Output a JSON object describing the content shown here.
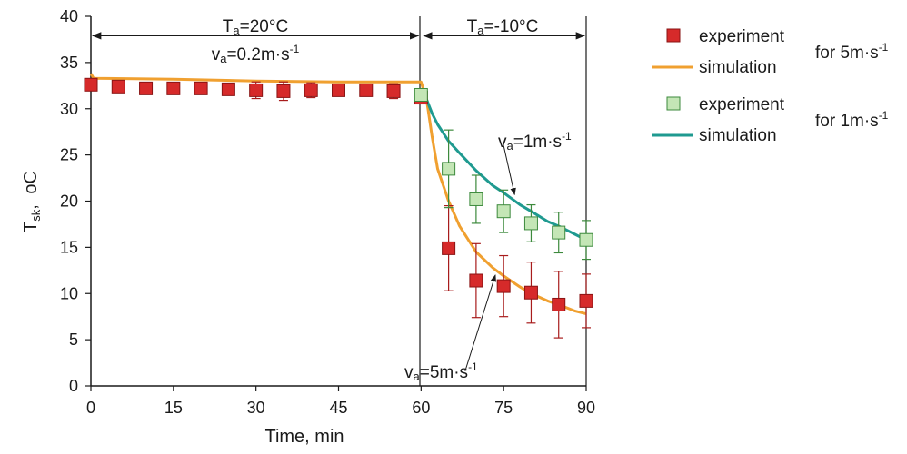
{
  "chart_data": {
    "type": "line",
    "xlabel": "Time, min",
    "ylabel_main": "T",
    "ylabel_sub": "sk",
    "ylabel_unit": "oC",
    "xlim": [
      0,
      90
    ],
    "ylim": [
      0,
      40
    ],
    "xticks": [
      "0",
      "15",
      "30",
      "45",
      "60",
      "75",
      "90"
    ],
    "yticks": [
      "0",
      "5",
      "10",
      "15",
      "20",
      "25",
      "30",
      "35",
      "40"
    ],
    "grid": false,
    "legend_position": "right",
    "series": [
      {
        "name": "experiment",
        "group": "for 5m·s-1",
        "kind": "scatter",
        "color": "#d62a2a",
        "points": [
          {
            "x": 0,
            "y": 32.6,
            "err": 0.5
          },
          {
            "x": 5,
            "y": 32.4,
            "err": 0.6
          },
          {
            "x": 10,
            "y": 32.2,
            "err": 0.6
          },
          {
            "x": 15,
            "y": 32.2,
            "err": 0.6
          },
          {
            "x": 20,
            "y": 32.2,
            "err": 0.6
          },
          {
            "x": 25,
            "y": 32.1,
            "err": 0.6
          },
          {
            "x": 30,
            "y": 32.0,
            "err": 0.9
          },
          {
            "x": 35,
            "y": 31.9,
            "err": 1.0
          },
          {
            "x": 40,
            "y": 32.0,
            "err": 0.8
          },
          {
            "x": 45,
            "y": 32.0,
            "err": 0.3
          },
          {
            "x": 50,
            "y": 32.0,
            "err": 0.3
          },
          {
            "x": 55,
            "y": 31.9,
            "err": 0.8
          },
          {
            "x": 60,
            "y": 31.2,
            "err": 0.4
          },
          {
            "x": 65,
            "y": 14.9,
            "err": 4.6
          },
          {
            "x": 70,
            "y": 11.4,
            "err": 4.0
          },
          {
            "x": 75,
            "y": 10.8,
            "err": 3.3
          },
          {
            "x": 80,
            "y": 10.1,
            "err": 3.3
          },
          {
            "x": 85,
            "y": 8.8,
            "err": 3.6
          },
          {
            "x": 90,
            "y": 9.2,
            "err": 2.9
          }
        ]
      },
      {
        "name": "simulation",
        "group": "for 5m·s-1",
        "kind": "line",
        "color": "#f0a030",
        "points": [
          {
            "x": 0,
            "y": 33.8
          },
          {
            "x": 0.5,
            "y": 33.3
          },
          {
            "x": 15,
            "y": 33.2
          },
          {
            "x": 30,
            "y": 33.0
          },
          {
            "x": 45,
            "y": 32.9
          },
          {
            "x": 60,
            "y": 32.9
          },
          {
            "x": 61,
            "y": 31.0
          },
          {
            "x": 62,
            "y": 27.0
          },
          {
            "x": 63,
            "y": 23.5
          },
          {
            "x": 65,
            "y": 20.0
          },
          {
            "x": 67,
            "y": 17.3
          },
          {
            "x": 70,
            "y": 14.5
          },
          {
            "x": 73,
            "y": 12.8
          },
          {
            "x": 75,
            "y": 11.9
          },
          {
            "x": 78,
            "y": 10.7
          },
          {
            "x": 80,
            "y": 10.0
          },
          {
            "x": 83,
            "y": 9.2
          },
          {
            "x": 85,
            "y": 8.8
          },
          {
            "x": 88,
            "y": 8.1
          },
          {
            "x": 90,
            "y": 7.8
          }
        ]
      },
      {
        "name": "experiment",
        "group": "for 1m·s-1",
        "kind": "scatter",
        "color": "#c4e6b6",
        "points": [
          {
            "x": 60,
            "y": 31.5,
            "err": 0.5
          },
          {
            "x": 65,
            "y": 23.5,
            "err": 4.2
          },
          {
            "x": 70,
            "y": 20.2,
            "err": 2.6
          },
          {
            "x": 75,
            "y": 18.9,
            "err": 2.3
          },
          {
            "x": 80,
            "y": 17.6,
            "err": 2.0
          },
          {
            "x": 85,
            "y": 16.6,
            "err": 2.2
          },
          {
            "x": 90,
            "y": 15.8,
            "err": 2.1
          }
        ]
      },
      {
        "name": "simulation",
        "group": "for 1m·s-1",
        "kind": "line",
        "color": "#1f9a90",
        "points": [
          {
            "x": 60,
            "y": 32.2
          },
          {
            "x": 61,
            "y": 31.0
          },
          {
            "x": 62,
            "y": 29.5
          },
          {
            "x": 63,
            "y": 28.3
          },
          {
            "x": 65,
            "y": 26.5
          },
          {
            "x": 67,
            "y": 25.2
          },
          {
            "x": 70,
            "y": 23.3
          },
          {
            "x": 73,
            "y": 21.7
          },
          {
            "x": 75,
            "y": 20.9
          },
          {
            "x": 78,
            "y": 19.6
          },
          {
            "x": 80,
            "y": 18.9
          },
          {
            "x": 83,
            "y": 17.8
          },
          {
            "x": 85,
            "y": 17.3
          },
          {
            "x": 88,
            "y": 16.4
          },
          {
            "x": 90,
            "y": 15.8
          }
        ]
      }
    ],
    "legend": {
      "groups": [
        {
          "label_main": "for 5m·s",
          "label_sup": "-1",
          "entries": [
            "experiment",
            "simulation"
          ]
        },
        {
          "label_main": "for 1m·s",
          "label_sup": "-1",
          "entries": [
            "experiment",
            "simulation"
          ]
        }
      ]
    },
    "phases": [
      {
        "x_from": 0,
        "x_to": 60,
        "y": 37.9,
        "line1_main": "T",
        "line1_sub": "a",
        "line1_rest": "=20°C",
        "line2_main": "v",
        "line2_sub": "a",
        "line2_rest": "=0.2m·s",
        "line2_sup": "-1"
      },
      {
        "x_from": 60,
        "x_to": 90,
        "y": 37.9,
        "line1_main": "T",
        "line1_sub": "a",
        "line1_rest": "=-10°C"
      }
    ],
    "annotations": [
      {
        "main": "v",
        "sub": "a",
        "rest": "=1m·s",
        "sup": "-1",
        "target_x": 77,
        "target_y": 20.7,
        "label_x": 75,
        "label_y": 26.0
      },
      {
        "main": "v",
        "sub": "a",
        "rest": "=5m·s",
        "sup": "-1",
        "target_x": 73.5,
        "target_y": 12.0,
        "label_x": 68,
        "label_y": 1.6
      }
    ]
  }
}
